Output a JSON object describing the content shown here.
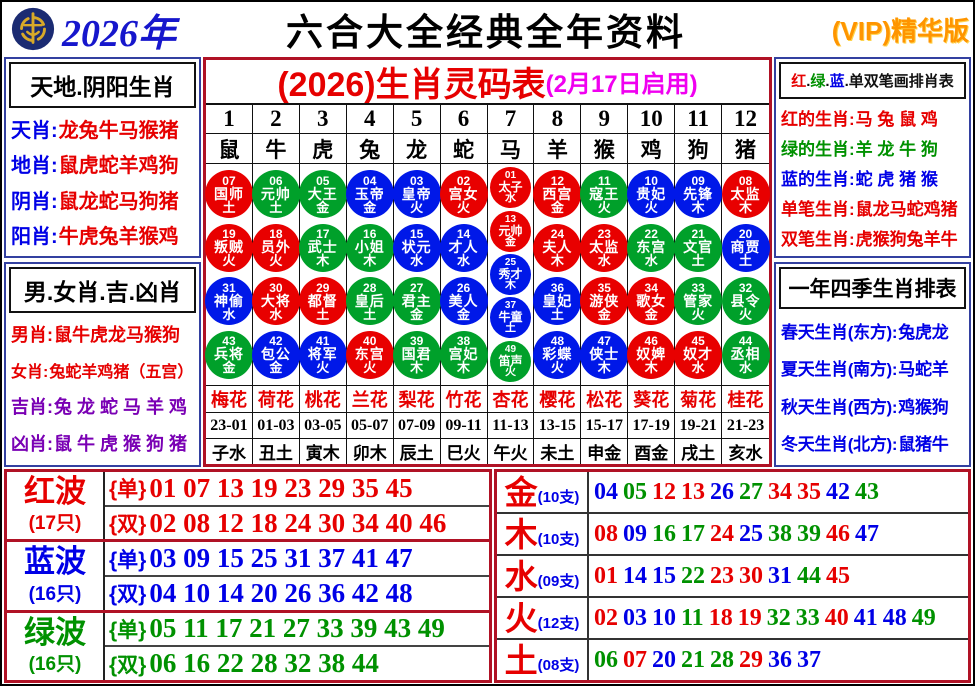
{
  "palette": {
    "red": "#e60000",
    "blue": "#0000e6",
    "green": "#009100",
    "purple": "#7a00b4",
    "black": "#111111",
    "magenta": "#f000f0",
    "ballred": "#e80000",
    "ballblue": "#0018e8",
    "ballgreen": "#00a02a"
  },
  "header": {
    "year": "2026年",
    "title": "六合大全经典全年资料",
    "vip": "(VIP)精华版",
    "logo": "coin-logo-icon"
  },
  "left_top": {
    "title": "天地.阴阳生肖",
    "rows": [
      {
        "label": "天肖:",
        "value": "龙兔牛马猴猪",
        "label_color": "blue",
        "value_color": "red"
      },
      {
        "label": "地肖:",
        "value": "鼠虎蛇羊鸡狗",
        "label_color": "blue",
        "value_color": "red"
      },
      {
        "label": "阴肖:",
        "value": "鼠龙蛇马狗猪",
        "label_color": "blue",
        "value_color": "red"
      },
      {
        "label": "阳肖:",
        "value": "牛虎兔羊猴鸡",
        "label_color": "blue",
        "value_color": "red"
      }
    ]
  },
  "left_bottom": {
    "title": "男.女肖.吉.凶肖",
    "rows": [
      {
        "label": "男肖:",
        "value": "鼠牛虎龙马猴狗",
        "label_color": "red",
        "value_color": "red"
      },
      {
        "label": "女肖:",
        "value": "兔蛇羊鸡猪（五宫）",
        "label_color": "red",
        "value_color": "red"
      },
      {
        "label": "吉肖:",
        "value": "兔 龙 蛇 马 羊 鸡",
        "label_color": "purple",
        "value_color": "purple"
      },
      {
        "label": "凶肖:",
        "value": "鼠 牛 虎 猴 狗 猪",
        "label_color": "purple",
        "value_color": "purple"
      }
    ]
  },
  "main_table": {
    "title": "(2026)生肖灵码表",
    "subtitle": "(2月17日启用)",
    "columns": [
      {
        "num": "1",
        "zodiac": "鼠",
        "flower": "梅花",
        "time": "23-01",
        "branch": "子水",
        "circles": [
          {
            "n": "07",
            "t": "国师",
            "e": "土",
            "c": "ballred"
          },
          {
            "n": "19",
            "t": "叛贼",
            "e": "火",
            "c": "ballred"
          },
          {
            "n": "31",
            "t": "神偷",
            "e": "水",
            "c": "ballblue"
          },
          {
            "n": "43",
            "t": "兵将",
            "e": "金",
            "c": "ballgreen"
          }
        ]
      },
      {
        "num": "2",
        "zodiac": "牛",
        "flower": "荷花",
        "time": "01-03",
        "branch": "丑土",
        "circles": [
          {
            "n": "06",
            "t": "元帅",
            "e": "土",
            "c": "ballgreen"
          },
          {
            "n": "18",
            "t": "员外",
            "e": "火",
            "c": "ballred"
          },
          {
            "n": "30",
            "t": "大将",
            "e": "水",
            "c": "ballred"
          },
          {
            "n": "42",
            "t": "包公",
            "e": "金",
            "c": "ballblue"
          }
        ]
      },
      {
        "num": "3",
        "zodiac": "虎",
        "flower": "桃花",
        "time": "03-05",
        "branch": "寅木",
        "circles": [
          {
            "n": "05",
            "t": "大王",
            "e": "金",
            "c": "ballgreen"
          },
          {
            "n": "17",
            "t": "武士",
            "e": "木",
            "c": "ballgreen"
          },
          {
            "n": "29",
            "t": "都督",
            "e": "土",
            "c": "ballred"
          },
          {
            "n": "41",
            "t": "将军",
            "e": "火",
            "c": "ballblue"
          }
        ]
      },
      {
        "num": "4",
        "zodiac": "兔",
        "flower": "兰花",
        "time": "05-07",
        "branch": "卯木",
        "circles": [
          {
            "n": "04",
            "t": "玉帝",
            "e": "金",
            "c": "ballblue"
          },
          {
            "n": "16",
            "t": "小姐",
            "e": "木",
            "c": "ballgreen"
          },
          {
            "n": "28",
            "t": "皇后",
            "e": "土",
            "c": "ballgreen"
          },
          {
            "n": "40",
            "t": "东宫",
            "e": "火",
            "c": "ballred"
          }
        ]
      },
      {
        "num": "5",
        "zodiac": "龙",
        "flower": "梨花",
        "time": "07-09",
        "branch": "辰土",
        "circles": [
          {
            "n": "03",
            "t": "皇帝",
            "e": "火",
            "c": "ballblue"
          },
          {
            "n": "15",
            "t": "状元",
            "e": "水",
            "c": "ballblue"
          },
          {
            "n": "27",
            "t": "君主",
            "e": "金",
            "c": "ballgreen"
          },
          {
            "n": "39",
            "t": "国君",
            "e": "木",
            "c": "ballgreen"
          }
        ]
      },
      {
        "num": "6",
        "zodiac": "蛇",
        "flower": "竹花",
        "time": "09-11",
        "branch": "巳火",
        "circles": [
          {
            "n": "02",
            "t": "宫女",
            "e": "火",
            "c": "ballred"
          },
          {
            "n": "14",
            "t": "才人",
            "e": "水",
            "c": "ballblue"
          },
          {
            "n": "26",
            "t": "美人",
            "e": "金",
            "c": "ballblue"
          },
          {
            "n": "38",
            "t": "宫妃",
            "e": "木",
            "c": "ballgreen"
          }
        ]
      },
      {
        "num": "7",
        "zodiac": "马",
        "flower": "杏花",
        "time": "11-13",
        "branch": "午火",
        "circles": [
          {
            "n": "01",
            "t": "太子",
            "e": "水",
            "c": "ballred"
          },
          {
            "n": "13",
            "t": "元帅",
            "e": "金",
            "c": "ballred"
          },
          {
            "n": "25",
            "t": "秀才",
            "e": "木",
            "c": "ballblue"
          },
          {
            "n": "37",
            "t": "牛童",
            "e": "土",
            "c": "ballblue"
          },
          {
            "n": "49",
            "t": "笛声",
            "e": "火",
            "c": "ballgreen"
          }
        ]
      },
      {
        "num": "8",
        "zodiac": "羊",
        "flower": "樱花",
        "time": "13-15",
        "branch": "未土",
        "circles": [
          {
            "n": "12",
            "t": "西宫",
            "e": "金",
            "c": "ballred"
          },
          {
            "n": "24",
            "t": "夫人",
            "e": "木",
            "c": "ballred"
          },
          {
            "n": "36",
            "t": "皇妃",
            "e": "土",
            "c": "ballblue"
          },
          {
            "n": "48",
            "t": "彩蝶",
            "e": "火",
            "c": "ballblue"
          }
        ]
      },
      {
        "num": "9",
        "zodiac": "猴",
        "flower": "松花",
        "time": "15-17",
        "branch": "申金",
        "circles": [
          {
            "n": "11",
            "t": "寇王",
            "e": "火",
            "c": "ballgreen"
          },
          {
            "n": "23",
            "t": "太监",
            "e": "水",
            "c": "ballred"
          },
          {
            "n": "35",
            "t": "游侠",
            "e": "金",
            "c": "ballred"
          },
          {
            "n": "47",
            "t": "侠士",
            "e": "木",
            "c": "ballblue"
          }
        ]
      },
      {
        "num": "10",
        "zodiac": "鸡",
        "flower": "葵花",
        "time": "17-19",
        "branch": "酉金",
        "circles": [
          {
            "n": "10",
            "t": "贵妃",
            "e": "火",
            "c": "ballblue"
          },
          {
            "n": "22",
            "t": "东宫",
            "e": "水",
            "c": "ballgreen"
          },
          {
            "n": "34",
            "t": "歌女",
            "e": "金",
            "c": "ballred"
          },
          {
            "n": "46",
            "t": "奴婢",
            "e": "木",
            "c": "ballred"
          }
        ]
      },
      {
        "num": "11",
        "zodiac": "狗",
        "flower": "菊花",
        "time": "19-21",
        "branch": "戌土",
        "circles": [
          {
            "n": "09",
            "t": "先锋",
            "e": "木",
            "c": "ballblue"
          },
          {
            "n": "21",
            "t": "文官",
            "e": "土",
            "c": "ballgreen"
          },
          {
            "n": "33",
            "t": "管家",
            "e": "火",
            "c": "ballgreen"
          },
          {
            "n": "45",
            "t": "奴才",
            "e": "水",
            "c": "ballred"
          }
        ]
      },
      {
        "num": "12",
        "zodiac": "猪",
        "flower": "桂花",
        "time": "21-23",
        "branch": "亥水",
        "circles": [
          {
            "n": "08",
            "t": "太监",
            "e": "木",
            "c": "ballred"
          },
          {
            "n": "20",
            "t": "商贾",
            "e": "土",
            "c": "ballblue"
          },
          {
            "n": "32",
            "t": "县令",
            "e": "火",
            "c": "ballgreen"
          },
          {
            "n": "44",
            "t": "丞相",
            "e": "水",
            "c": "ballgreen"
          }
        ]
      }
    ]
  },
  "right_top": {
    "title_segments": [
      {
        "t": "红",
        "c": "red"
      },
      {
        "t": ".",
        "c": "black"
      },
      {
        "t": "绿",
        "c": "green"
      },
      {
        "t": ".",
        "c": "black"
      },
      {
        "t": "蓝",
        "c": "blue"
      },
      {
        "t": ".",
        "c": "black"
      },
      {
        "t": "单双笔画排肖表",
        "c": "black"
      }
    ],
    "rows": [
      {
        "label": "红的生肖:",
        "value": "马 兔 鼠 鸡",
        "label_color": "red",
        "value_color": "red"
      },
      {
        "label": "绿的生肖:",
        "value": "羊 龙 牛 狗",
        "label_color": "green",
        "value_color": "green"
      },
      {
        "label": "蓝的生肖:",
        "value": "蛇 虎 猪 猴",
        "label_color": "blue",
        "value_color": "blue"
      },
      {
        "label": "单笔生肖:",
        "value": "鼠龙马蛇鸡猪",
        "label_color": "red",
        "value_color": "red"
      },
      {
        "label": "双笔生肖:",
        "value": "虎猴狗兔羊牛",
        "label_color": "red",
        "value_color": "red"
      }
    ]
  },
  "right_bottom": {
    "title": "一年四季生肖排表",
    "rows": [
      {
        "label": "春天生肖(东方):",
        "value": "兔虎龙",
        "label_color": "blue",
        "value_color": "blue"
      },
      {
        "label": "夏天生肖(南方):",
        "value": "马蛇羊",
        "label_color": "blue",
        "value_color": "blue"
      },
      {
        "label": "秋天生肖(西方):",
        "value": "鸡猴狗",
        "label_color": "blue",
        "value_color": "blue"
      },
      {
        "label": "冬天生肖(北方):",
        "value": "鼠猪牛",
        "label_color": "blue",
        "value_color": "blue"
      }
    ]
  },
  "waves": [
    {
      "name": "红波",
      "count": "(17只)",
      "color": "red",
      "rows": [
        {
          "tag": "{单}",
          "numbers": "01 07 13 19 23 29 35 45"
        },
        {
          "tag": "{双}",
          "numbers": "02 08 12 18 24 30 34 40 46"
        }
      ]
    },
    {
      "name": "蓝波",
      "count": "(16只)",
      "color": "blue",
      "rows": [
        {
          "tag": "{单}",
          "numbers": "03 09 15 25 31 37 41 47"
        },
        {
          "tag": "{双}",
          "numbers": "04 10 14 20 26 36 42 48"
        }
      ]
    },
    {
      "name": "绿波",
      "count": "(16只)",
      "color": "green",
      "rows": [
        {
          "tag": "{单}",
          "numbers": "05 11 17 21 27 33 39 43 49"
        },
        {
          "tag": "{双}",
          "numbers": "06 16 22 28 32 38 44"
        }
      ]
    }
  ],
  "elements": [
    {
      "name": "金",
      "count": "(10支)",
      "numbers": [
        {
          "v": "04",
          "c": "blue"
        },
        {
          "v": "05",
          "c": "green"
        },
        {
          "v": "12",
          "c": "red"
        },
        {
          "v": "13",
          "c": "red"
        },
        {
          "v": "26",
          "c": "blue"
        },
        {
          "v": "27",
          "c": "green"
        },
        {
          "v": "34",
          "c": "red"
        },
        {
          "v": "35",
          "c": "red"
        },
        {
          "v": "42",
          "c": "blue"
        },
        {
          "v": "43",
          "c": "green"
        }
      ]
    },
    {
      "name": "木",
      "count": "(10支)",
      "numbers": [
        {
          "v": "08",
          "c": "red"
        },
        {
          "v": "09",
          "c": "blue"
        },
        {
          "v": "16",
          "c": "green"
        },
        {
          "v": "17",
          "c": "green"
        },
        {
          "v": "24",
          "c": "red"
        },
        {
          "v": "25",
          "c": "blue"
        },
        {
          "v": "38",
          "c": "green"
        },
        {
          "v": "39",
          "c": "green"
        },
        {
          "v": "46",
          "c": "red"
        },
        {
          "v": "47",
          "c": "blue"
        }
      ]
    },
    {
      "name": "水",
      "count": "(09支)",
      "numbers": [
        {
          "v": "01",
          "c": "red"
        },
        {
          "v": "14",
          "c": "blue"
        },
        {
          "v": "15",
          "c": "blue"
        },
        {
          "v": "22",
          "c": "green"
        },
        {
          "v": "23",
          "c": "red"
        },
        {
          "v": "30",
          "c": "red"
        },
        {
          "v": "31",
          "c": "blue"
        },
        {
          "v": "44",
          "c": "green"
        },
        {
          "v": "45",
          "c": "red"
        }
      ]
    },
    {
      "name": "火",
      "count": "(12支)",
      "numbers": [
        {
          "v": "02",
          "c": "red"
        },
        {
          "v": "03",
          "c": "blue"
        },
        {
          "v": "10",
          "c": "blue"
        },
        {
          "v": "11",
          "c": "green"
        },
        {
          "v": "18",
          "c": "red"
        },
        {
          "v": "19",
          "c": "red"
        },
        {
          "v": "32",
          "c": "green"
        },
        {
          "v": "33",
          "c": "green"
        },
        {
          "v": "40",
          "c": "red"
        },
        {
          "v": "41",
          "c": "blue"
        },
        {
          "v": "48",
          "c": "blue"
        },
        {
          "v": "49",
          "c": "green"
        }
      ]
    },
    {
      "name": "土",
      "count": "(08支)",
      "numbers": [
        {
          "v": "06",
          "c": "green"
        },
        {
          "v": "07",
          "c": "red"
        },
        {
          "v": "20",
          "c": "blue"
        },
        {
          "v": "21",
          "c": "green"
        },
        {
          "v": "28",
          "c": "green"
        },
        {
          "v": "29",
          "c": "red"
        },
        {
          "v": "36",
          "c": "blue"
        },
        {
          "v": "37",
          "c": "blue"
        }
      ]
    }
  ]
}
